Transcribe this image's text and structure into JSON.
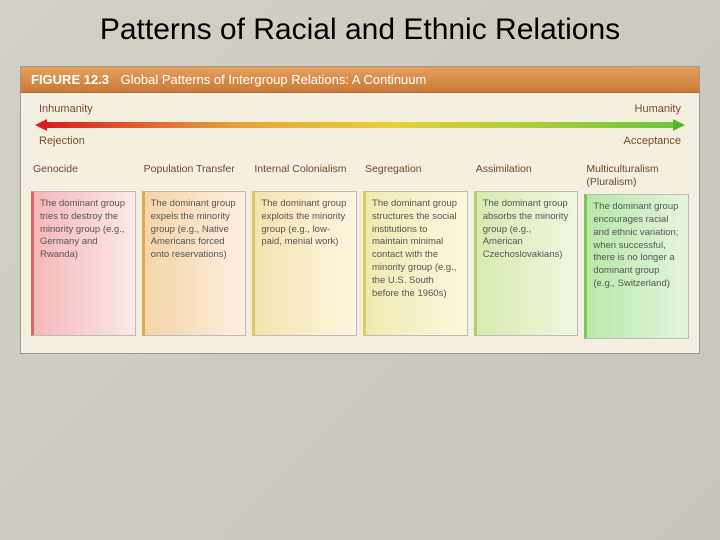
{
  "slide": {
    "title": "Patterns of Racial and Ethnic Relations"
  },
  "figure": {
    "number": "FIGURE 12.3",
    "caption": "Global Patterns of Intergroup Relations: A Continuum",
    "spectrum": {
      "top_left": "Inhumanity",
      "top_right": "Humanity",
      "bottom_left": "Rejection",
      "bottom_right": "Acceptance",
      "gradient_colors": [
        "#d91e1e",
        "#e8a03a",
        "#e8d03a",
        "#6ac93a"
      ]
    },
    "columns": [
      {
        "title": "Genocide",
        "body": "The dominant group tries to destroy the minority group (e.g., Germany and Rwanda)",
        "box_gradient": [
          "#f5b8b8",
          "#fce8e8"
        ],
        "bar_color": "#d96a6a"
      },
      {
        "title": "Population Transfer",
        "body": "The dominant group expels the minority group (e.g., Native Americans forced onto reservations)",
        "box_gradient": [
          "#f5d4a8",
          "#fcefdf"
        ],
        "bar_color": "#e0a858"
      },
      {
        "title": "Internal Colonialism",
        "body": "The dominant group exploits the minority group (e.g., low-paid, menial work)",
        "box_gradient": [
          "#f5e4b0",
          "#fcf5e0"
        ],
        "bar_color": "#e0c860"
      },
      {
        "title": "Segregation",
        "body": "The dominant group structures the social institutions to maintain minimal contact with the minority group (e.g., the U.S. South before the 1960s)",
        "box_gradient": [
          "#f0eab0",
          "#faf7e0"
        ],
        "bar_color": "#d8d060"
      },
      {
        "title": "Assimilation",
        "body": "The dominant group absorbs the minority group (e.g., American Czechoslovakians)",
        "box_gradient": [
          "#d8eab0",
          "#f0f6e0"
        ],
        "bar_color": "#b0d060"
      },
      {
        "title": "Multiculturalism (Pluralism)",
        "body": "The dominant group encourages racial and ethnic variation; when successful, there is no longer a dominant group (e.g., Switzerland)",
        "box_gradient": [
          "#b8e8a8",
          "#e4f5de"
        ],
        "bar_color": "#78c858"
      }
    ]
  },
  "colors": {
    "slide_bg_from": "#d4d0c4",
    "slide_bg_to": "#c8c4b8",
    "header_from": "#e8a05a",
    "header_to": "#c97a3a",
    "panel_bg": "#f5efe0",
    "label_color": "#7a4a2a"
  }
}
